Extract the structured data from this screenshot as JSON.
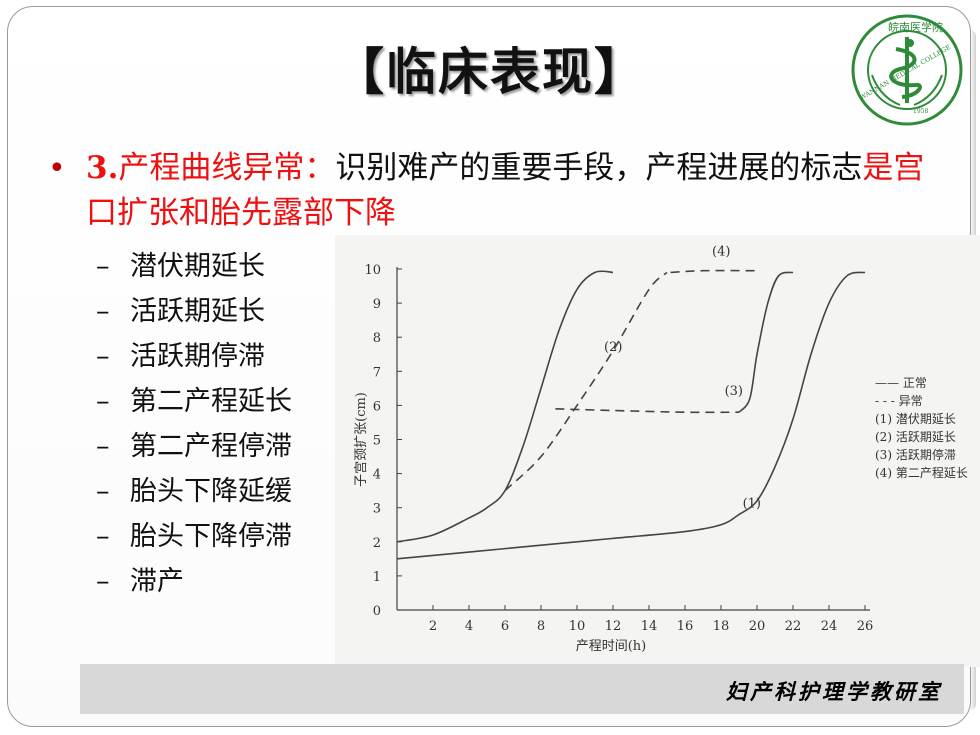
{
  "title": "【临床表现】",
  "logo": {
    "name": "college-seal",
    "text": "WANNAN MEDICAL COLLEGE",
    "year": "1958",
    "chars": "皖南医学院"
  },
  "bullet": {
    "number": "3.",
    "heading": "产程曲线异常：",
    "body": "识别难产的重要手段，产程进展的标志",
    "emphasis": "是宫口扩张和胎先露部下降"
  },
  "subitems": [
    "潜伏期延长",
    "活跃期延长",
    "活跃期停滞",
    "第二产程延长",
    "第二产程停滞",
    "胎头下降延缓",
    "胎头下降停滞",
    "滞产"
  ],
  "chart_data": {
    "type": "line",
    "xlabel": "产程时间(h)",
    "ylabel": "子宫颈扩张(cm)",
    "xlim": [
      0,
      26
    ],
    "ylim": [
      0,
      10
    ],
    "xticks": [
      2,
      4,
      6,
      8,
      10,
      12,
      14,
      16,
      18,
      20,
      22,
      24,
      26
    ],
    "yticks": [
      0,
      1,
      2,
      3,
      4,
      5,
      6,
      7,
      8,
      9,
      10
    ],
    "legend": [
      "—— 正常",
      "- - - 异常",
      "(1) 潜伏期延长",
      "(2) 活跃期延长",
      "(3) 活跃期停滞",
      "(4) 第二产程延长"
    ],
    "legend_position": "right",
    "series": [
      {
        "name": "正常",
        "style": "solid",
        "points": [
          [
            0,
            2
          ],
          [
            2,
            2.2
          ],
          [
            4,
            2.7
          ],
          [
            5,
            3.0
          ],
          [
            6,
            3.5
          ],
          [
            7,
            4.8
          ],
          [
            8,
            6.5
          ],
          [
            9,
            8.2
          ],
          [
            10,
            9.4
          ],
          [
            11,
            9.9
          ],
          [
            12,
            9.9
          ]
        ]
      },
      {
        "name": "(1)",
        "style": "solid",
        "points": [
          [
            0,
            1.5
          ],
          [
            4,
            1.7
          ],
          [
            8,
            1.9
          ],
          [
            12,
            2.1
          ],
          [
            16,
            2.3
          ],
          [
            18,
            2.5
          ],
          [
            19,
            2.8
          ],
          [
            20,
            3.2
          ],
          [
            21,
            4.2
          ],
          [
            22,
            5.6
          ],
          [
            23,
            7.5
          ],
          [
            24,
            9.0
          ],
          [
            25,
            9.8
          ],
          [
            26,
            9.9
          ]
        ]
      },
      {
        "name": "(2)",
        "style": "dashed",
        "points": [
          [
            6,
            3.5
          ],
          [
            8,
            4.5
          ],
          [
            10,
            6.0
          ],
          [
            12,
            7.6
          ],
          [
            14,
            9.4
          ],
          [
            15,
            9.9
          ]
        ]
      },
      {
        "name": "(3)",
        "style": "dashed",
        "points": [
          [
            8.8,
            5.9
          ],
          [
            12,
            5.85
          ],
          [
            16,
            5.8
          ],
          [
            19,
            5.8
          ]
        ]
      },
      {
        "name": "(3)",
        "style": "solid",
        "points": [
          [
            19,
            5.8
          ],
          [
            19.6,
            6.2
          ],
          [
            20,
            7.5
          ],
          [
            20.6,
            9.0
          ],
          [
            21.2,
            9.8
          ],
          [
            22,
            9.9
          ]
        ]
      },
      {
        "name": "(4)",
        "style": "dashed",
        "points": [
          [
            15.2,
            9.9
          ],
          [
            17,
            9.95
          ],
          [
            20,
            9.95
          ]
        ]
      }
    ],
    "labels": [
      "(1)",
      "(2)",
      "(3)",
      "(4)"
    ]
  },
  "footer": "妇产科护理学教研室"
}
